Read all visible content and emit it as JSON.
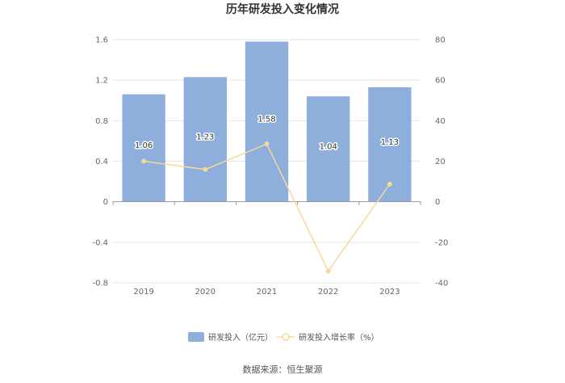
{
  "chart_data": {
    "type": "bar",
    "title": "历年研发投入变化情况",
    "categories": [
      "2019",
      "2020",
      "2021",
      "2022",
      "2023"
    ],
    "series": [
      {
        "name": "研发投入（亿元）",
        "type": "bar",
        "axis": "left",
        "color": "#8eaedc",
        "values": [
          1.06,
          1.23,
          1.58,
          1.04,
          1.13
        ],
        "labels": [
          "1.06",
          "1.23",
          "1.58",
          "1.04",
          "1.13"
        ]
      },
      {
        "name": "研发投入增长率（%）",
        "type": "line",
        "axis": "right",
        "color": "#f8d89a",
        "values": [
          20,
          15.9,
          28.5,
          -34.2,
          8.7
        ]
      }
    ],
    "y_left": {
      "min": -0.8,
      "max": 1.6,
      "ticks": [
        "1.6",
        "1.2",
        "0.8",
        "0.4",
        "0",
        "-0.4",
        "-0.8"
      ]
    },
    "y_right": {
      "min": -40,
      "max": 80,
      "ticks": [
        "80",
        "60",
        "40",
        "20",
        "0",
        "-20",
        "-40"
      ]
    },
    "grid": true,
    "legend_position": "bottom",
    "source": "数据来源：恒生聚源"
  }
}
